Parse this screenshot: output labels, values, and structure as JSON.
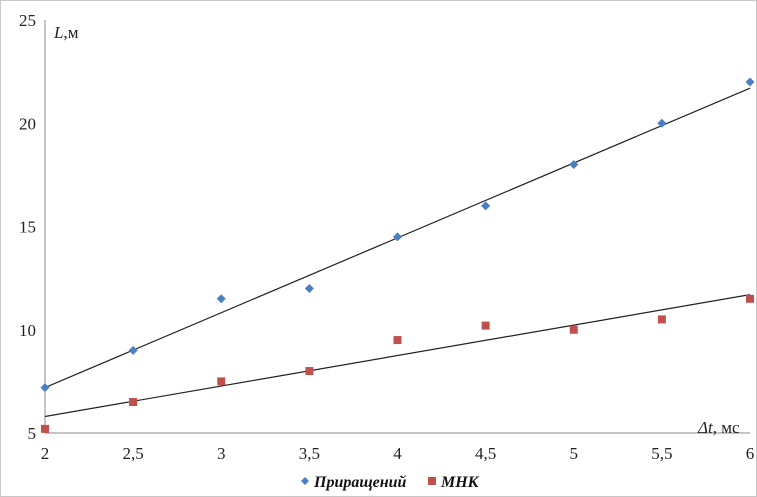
{
  "chart_data": {
    "type": "scatter",
    "xlabel_var": "Δt",
    "xlabel_unit": ", мс",
    "ylabel_var": "L",
    "ylabel_unit": ",м",
    "xlim": [
      2,
      6
    ],
    "ylim": [
      5,
      25
    ],
    "x_ticks": [
      "2",
      "2,5",
      "3",
      "3,5",
      "4",
      "4,5",
      "5",
      "5,5",
      "6"
    ],
    "y_ticks": [
      "5",
      "10",
      "15",
      "20",
      "25"
    ],
    "grid": false,
    "legend_position": "bottom",
    "series": [
      {
        "name": "Приращений",
        "marker": "diamond",
        "color": "#4a7fc1",
        "x": [
          2,
          2.5,
          3,
          3.5,
          4,
          4.5,
          5,
          5.5,
          6
        ],
        "y": [
          7.2,
          9.0,
          11.5,
          12.0,
          14.5,
          16.0,
          18.0,
          20.0,
          22.0
        ],
        "trendline": {
          "x": [
            2,
            6
          ],
          "y": [
            7.2,
            21.7
          ]
        }
      },
      {
        "name": "МНК",
        "marker": "square",
        "color": "#c0504d",
        "x": [
          2,
          2.5,
          3,
          3.5,
          4,
          4.5,
          5,
          5.5,
          6
        ],
        "y": [
          5.2,
          6.5,
          7.5,
          8.0,
          9.5,
          10.2,
          10.0,
          10.5,
          11.5
        ],
        "trendline": {
          "x": [
            2,
            6
          ],
          "y": [
            5.8,
            11.7
          ]
        }
      }
    ]
  }
}
